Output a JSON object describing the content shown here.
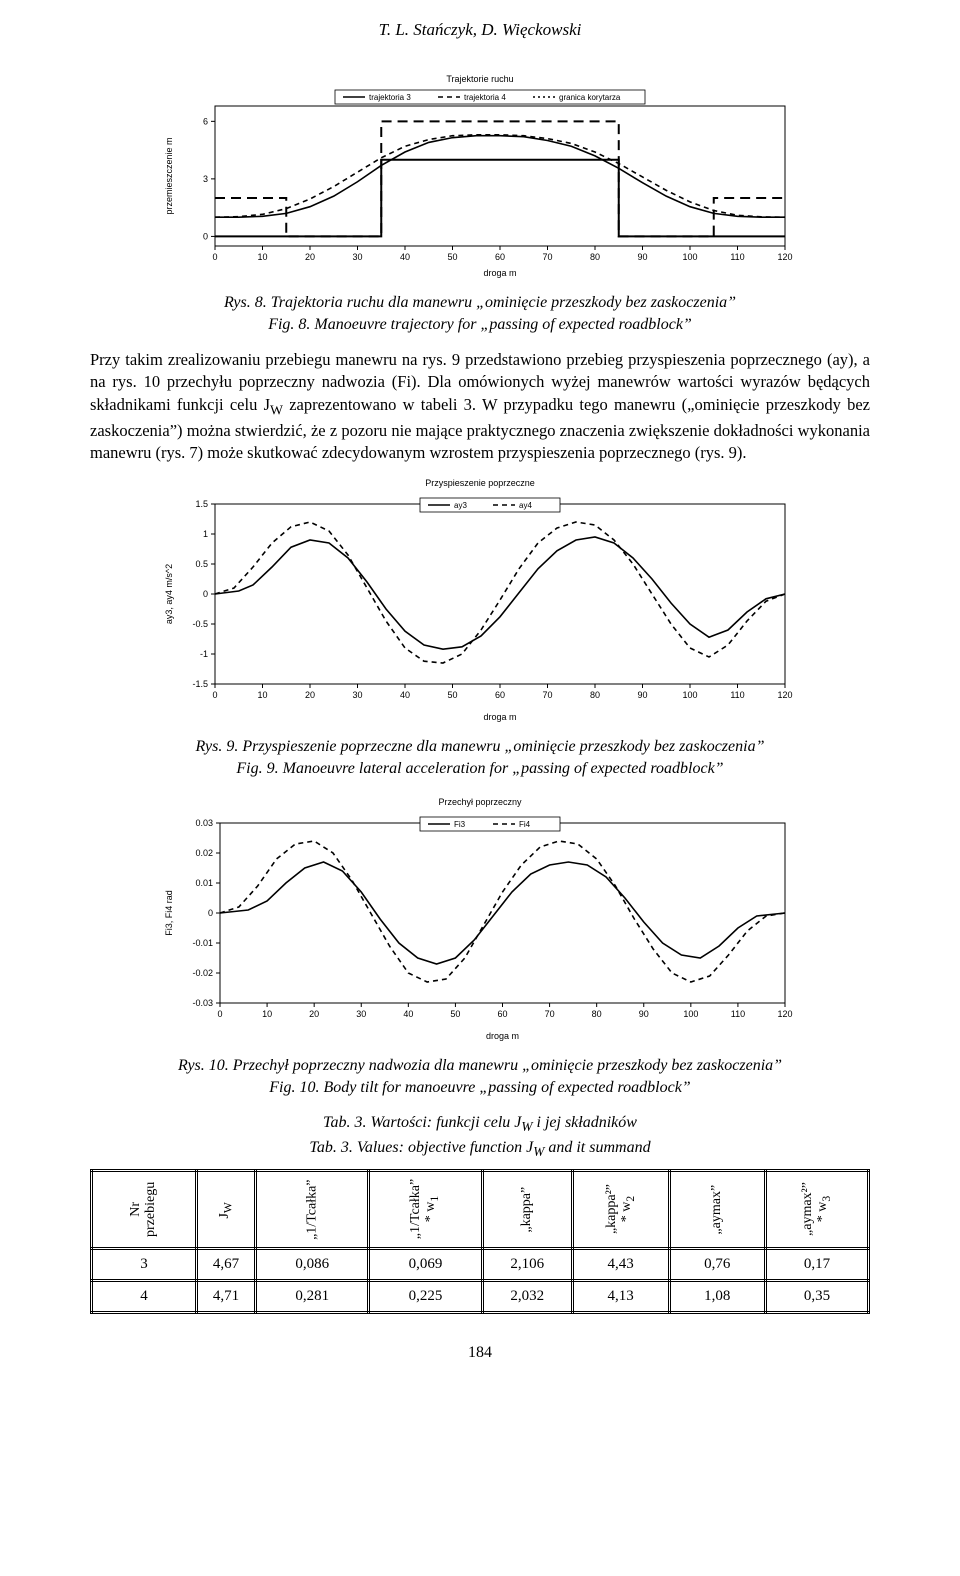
{
  "authors": "T. L. Stańczyk, D. Więckowski",
  "chart1": {
    "title": "Trajektorie ruchu",
    "xlabel": "droga m",
    "ylabel": "przemieszczenie  m",
    "title_fontsize": 9,
    "axis_fontsize": 9,
    "tick_fontsize": 9,
    "legend_items": [
      "trajektoria 3",
      "trajektoria 4",
      "granica korytarza"
    ],
    "x_ticks": [
      0,
      10,
      20,
      30,
      40,
      50,
      60,
      70,
      80,
      90,
      100,
      110,
      120
    ],
    "y_ticks": [
      0,
      3,
      6
    ],
    "xlim": [
      0,
      120
    ],
    "ylim": [
      -0.5,
      6.8
    ],
    "background_color": "#ffffff",
    "axis_color": "#000000",
    "series": {
      "traj3": {
        "style": "solid",
        "width": 1.6,
        "color": "#000000",
        "data": [
          [
            0,
            1
          ],
          [
            5,
            1
          ],
          [
            10,
            1.05
          ],
          [
            15,
            1.2
          ],
          [
            20,
            1.55
          ],
          [
            25,
            2.1
          ],
          [
            30,
            2.85
          ],
          [
            35,
            3.7
          ],
          [
            40,
            4.4
          ],
          [
            45,
            4.9
          ],
          [
            50,
            5.15
          ],
          [
            55,
            5.25
          ],
          [
            60,
            5.25
          ],
          [
            65,
            5.2
          ],
          [
            70,
            5.0
          ],
          [
            75,
            4.7
          ],
          [
            80,
            4.2
          ],
          [
            85,
            3.55
          ],
          [
            90,
            2.8
          ],
          [
            95,
            2.1
          ],
          [
            100,
            1.55
          ],
          [
            105,
            1.2
          ],
          [
            110,
            1.05
          ],
          [
            115,
            1
          ],
          [
            120,
            1
          ]
        ]
      },
      "traj4": {
        "style": "dash",
        "width": 1.6,
        "color": "#000000",
        "dash": "5,4",
        "data": [
          [
            0,
            1
          ],
          [
            5,
            1.03
          ],
          [
            10,
            1.15
          ],
          [
            15,
            1.45
          ],
          [
            20,
            1.95
          ],
          [
            25,
            2.6
          ],
          [
            30,
            3.35
          ],
          [
            35,
            4.1
          ],
          [
            40,
            4.7
          ],
          [
            45,
            5.05
          ],
          [
            50,
            5.25
          ],
          [
            55,
            5.3
          ],
          [
            60,
            5.3
          ],
          [
            65,
            5.25
          ],
          [
            70,
            5.1
          ],
          [
            75,
            4.85
          ],
          [
            80,
            4.4
          ],
          [
            85,
            3.8
          ],
          [
            90,
            3.1
          ],
          [
            95,
            2.4
          ],
          [
            100,
            1.8
          ],
          [
            105,
            1.35
          ],
          [
            110,
            1.1
          ],
          [
            115,
            1.02
          ],
          [
            120,
            1
          ]
        ]
      },
      "corridor_lower_top": {
        "style": "longdash",
        "width": 2,
        "color": "#000000",
        "dash": "10,6",
        "data": [
          [
            0,
            2
          ],
          [
            15,
            2
          ],
          [
            15,
            0
          ],
          [
            35,
            0
          ],
          [
            35,
            2
          ],
          [
            35,
            6
          ],
          [
            85,
            6
          ],
          [
            85,
            2
          ],
          [
            85,
            0
          ],
          [
            105,
            0
          ],
          [
            105,
            2
          ],
          [
            120,
            2
          ]
        ]
      },
      "corridor_bottom": {
        "style": "solid",
        "width": 2,
        "color": "#000000",
        "data": [
          [
            0,
            0
          ],
          [
            35,
            0
          ],
          [
            35,
            4
          ],
          [
            85,
            4
          ],
          [
            85,
            0
          ],
          [
            120,
            0
          ]
        ]
      }
    }
  },
  "caption1_pl": "Rys. 8. Trajektoria ruchu dla manewru „ominięcie przeszkody bez zaskoczenia”",
  "caption1_en": "Fig. 8. Manoeuvre trajectory for „passing of expected roadblock”",
  "paragraph": "Przy takim zrealizowaniu przebiegu manewru na rys. 9 przedstawiono przebieg przyspieszenia poprzecznego (ay), a na rys. 10 przechyłu poprzeczny nadwozia (Fi). Dla omówionych wyżej manewrów wartości wyrazów będących składnikami funkcji celu J",
  "paragraph_sub": "W",
  "paragraph_tail": " zaprezentowano w tabeli 3. W przypadku tego manewru („ominięcie przeszkody bez zaskoczenia”) można stwierdzić, że z pozoru nie mające praktycznego znaczenia zwiększenie dokładności wykonania manewru (rys. 7) może skutkować zdecydowanym wzrostem przyspieszenia poprzecznego (rys. 9).",
  "chart2": {
    "title": "Przyspieszenie poprzeczne",
    "xlabel": "droga  m",
    "ylabel": "ay3, ay4  m/s^2",
    "legend_items": [
      "ay3",
      "ay4"
    ],
    "x_ticks": [
      0,
      10,
      20,
      30,
      40,
      50,
      60,
      70,
      80,
      90,
      100,
      110,
      120
    ],
    "y_ticks": [
      -1.5,
      -1,
      -0.5,
      0,
      0.5,
      1,
      1.5
    ],
    "xlim": [
      0,
      120
    ],
    "ylim": [
      -1.5,
      1.5
    ],
    "series": {
      "ay3": {
        "style": "solid",
        "width": 1.6,
        "color": "#000000",
        "data": [
          [
            0,
            0
          ],
          [
            5,
            0.05
          ],
          [
            8,
            0.15
          ],
          [
            12,
            0.45
          ],
          [
            16,
            0.78
          ],
          [
            20,
            0.9
          ],
          [
            24,
            0.85
          ],
          [
            28,
            0.6
          ],
          [
            32,
            0.2
          ],
          [
            36,
            -0.25
          ],
          [
            40,
            -0.62
          ],
          [
            44,
            -0.85
          ],
          [
            48,
            -0.92
          ],
          [
            52,
            -0.88
          ],
          [
            56,
            -0.7
          ],
          [
            60,
            -0.38
          ],
          [
            64,
            0.02
          ],
          [
            68,
            0.42
          ],
          [
            72,
            0.72
          ],
          [
            76,
            0.9
          ],
          [
            80,
            0.95
          ],
          [
            84,
            0.85
          ],
          [
            88,
            0.6
          ],
          [
            92,
            0.25
          ],
          [
            96,
            -0.15
          ],
          [
            100,
            -0.5
          ],
          [
            104,
            -0.72
          ],
          [
            108,
            -0.6
          ],
          [
            112,
            -0.3
          ],
          [
            116,
            -0.08
          ],
          [
            120,
            0
          ]
        ]
      },
      "ay4": {
        "style": "dash",
        "width": 1.6,
        "color": "#000000",
        "dash": "5,4",
        "data": [
          [
            0,
            0
          ],
          [
            4,
            0.1
          ],
          [
            8,
            0.45
          ],
          [
            12,
            0.85
          ],
          [
            16,
            1.12
          ],
          [
            20,
            1.2
          ],
          [
            24,
            1.05
          ],
          [
            28,
            0.65
          ],
          [
            32,
            0.1
          ],
          [
            36,
            -0.45
          ],
          [
            40,
            -0.9
          ],
          [
            44,
            -1.12
          ],
          [
            48,
            -1.15
          ],
          [
            52,
            -1.0
          ],
          [
            56,
            -0.6
          ],
          [
            60,
            -0.1
          ],
          [
            64,
            0.42
          ],
          [
            68,
            0.85
          ],
          [
            72,
            1.1
          ],
          [
            76,
            1.2
          ],
          [
            80,
            1.15
          ],
          [
            84,
            0.9
          ],
          [
            88,
            0.5
          ],
          [
            92,
            0.0
          ],
          [
            96,
            -0.5
          ],
          [
            100,
            -0.9
          ],
          [
            104,
            -1.05
          ],
          [
            108,
            -0.85
          ],
          [
            112,
            -0.45
          ],
          [
            116,
            -0.12
          ],
          [
            120,
            0
          ]
        ]
      }
    }
  },
  "caption2_pl": "Rys. 9. Przyspieszenie poprzeczne dla manewru „ominięcie przeszkody bez zaskoczenia”",
  "caption2_en": "Fig. 9. Manoeuvre lateral acceleration for „passing of expected roadblock”",
  "chart3": {
    "title": "Przechył poprzeczny",
    "xlabel": "droga  m",
    "ylabel": "Fi3, Fi4  rad",
    "legend_items": [
      "Fi3",
      "Fi4"
    ],
    "x_ticks": [
      0,
      10,
      20,
      30,
      40,
      50,
      60,
      70,
      80,
      90,
      100,
      110,
      120
    ],
    "y_ticks": [
      -0.03,
      -0.02,
      -0.01,
      0,
      0.01,
      0.02,
      0.03
    ],
    "xlim": [
      0,
      120
    ],
    "ylim": [
      -0.03,
      0.03
    ],
    "series": {
      "fi3": {
        "style": "solid",
        "width": 1.6,
        "color": "#000000",
        "data": [
          [
            0,
            0
          ],
          [
            6,
            0.001
          ],
          [
            10,
            0.004
          ],
          [
            14,
            0.01
          ],
          [
            18,
            0.015
          ],
          [
            22,
            0.017
          ],
          [
            26,
            0.014
          ],
          [
            30,
            0.007
          ],
          [
            34,
            -0.002
          ],
          [
            38,
            -0.01
          ],
          [
            42,
            -0.015
          ],
          [
            46,
            -0.017
          ],
          [
            50,
            -0.015
          ],
          [
            54,
            -0.009
          ],
          [
            58,
            -0.001
          ],
          [
            62,
            0.007
          ],
          [
            66,
            0.013
          ],
          [
            70,
            0.016
          ],
          [
            74,
            0.017
          ],
          [
            78,
            0.016
          ],
          [
            82,
            0.012
          ],
          [
            86,
            0.005
          ],
          [
            90,
            -0.003
          ],
          [
            94,
            -0.01
          ],
          [
            98,
            -0.014
          ],
          [
            102,
            -0.015
          ],
          [
            106,
            -0.011
          ],
          [
            110,
            -0.005
          ],
          [
            114,
            -0.001
          ],
          [
            120,
            0
          ]
        ]
      },
      "fi4": {
        "style": "dash",
        "width": 1.6,
        "color": "#000000",
        "dash": "5,4",
        "data": [
          [
            0,
            0
          ],
          [
            4,
            0.002
          ],
          [
            8,
            0.009
          ],
          [
            12,
            0.018
          ],
          [
            16,
            0.023
          ],
          [
            20,
            0.024
          ],
          [
            24,
            0.02
          ],
          [
            28,
            0.011
          ],
          [
            32,
            0.0
          ],
          [
            36,
            -0.011
          ],
          [
            40,
            -0.02
          ],
          [
            44,
            -0.023
          ],
          [
            48,
            -0.022
          ],
          [
            52,
            -0.015
          ],
          [
            56,
            -0.004
          ],
          [
            60,
            0.007
          ],
          [
            64,
            0.016
          ],
          [
            68,
            0.022
          ],
          [
            72,
            0.024
          ],
          [
            76,
            0.023
          ],
          [
            80,
            0.018
          ],
          [
            84,
            0.009
          ],
          [
            88,
            -0.002
          ],
          [
            92,
            -0.012
          ],
          [
            96,
            -0.02
          ],
          [
            100,
            -0.023
          ],
          [
            104,
            -0.021
          ],
          [
            108,
            -0.014
          ],
          [
            112,
            -0.006
          ],
          [
            116,
            -0.001
          ],
          [
            120,
            0
          ]
        ]
      }
    }
  },
  "caption3_pl": "Rys. 10. Przechył poprzeczny nadwozia dla manewru „ominięcie przeszkody bez zaskoczenia”",
  "caption3_en": "Fig. 10. Body tilt for manoeuvre „passing of expected roadblock”",
  "table_caption_pl": "Tab. 3. Wartości: funkcji celu J",
  "table_caption_pl_sub": "W",
  "table_caption_pl_tail": " i jej składników",
  "table_caption_en": "Tab. 3. Values: objective function J",
  "table_caption_en_sub": "W",
  "table_caption_en_tail": " and it summand",
  "table": {
    "headers": [
      {
        "l1": "Nr",
        "l2": "przebiegu"
      },
      {
        "l1": "J",
        "sub": "W"
      },
      {
        "l1": "„1/Tcałka”"
      },
      {
        "l1": "„1/Tcałka”",
        "l2": "* w",
        "sub2": "1"
      },
      {
        "l1": "„kappa”"
      },
      {
        "l1": "„kappa²”",
        "l2": "* w",
        "sub2": "2"
      },
      {
        "l1": "„aymax”"
      },
      {
        "l1": "„aymax²”",
        "l2": "* w",
        "sub2": "3"
      }
    ],
    "rows": [
      [
        "3",
        "4,67",
        "0,086",
        "0,069",
        "2,106",
        "4,43",
        "0,76",
        "0,17"
      ],
      [
        "4",
        "4,71",
        "0,281",
        "0,225",
        "2,032",
        "4,13",
        "1,08",
        "0,35"
      ]
    ]
  },
  "page_number": "184"
}
